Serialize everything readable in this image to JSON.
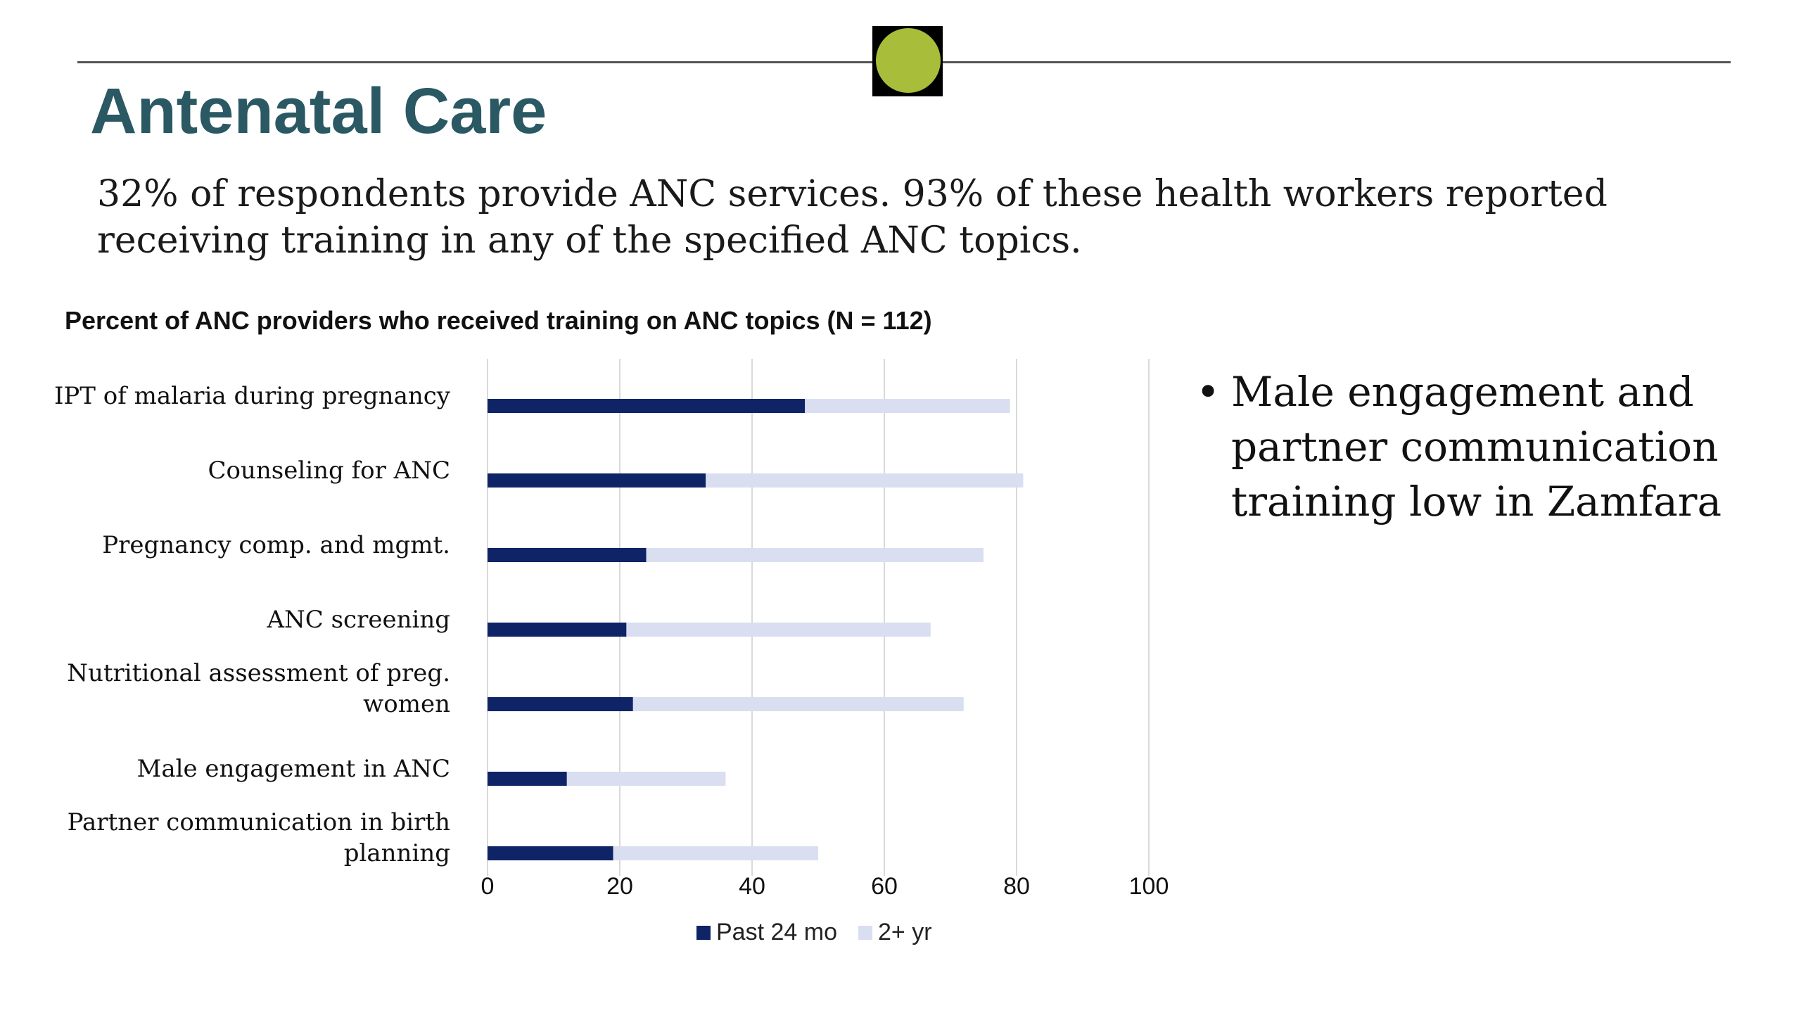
{
  "slide": {
    "title": "Antenatal Care",
    "subtitle": "32% of respondents provide ANC services. 93% of these health workers reported receiving training in any of the specified ANC topics.",
    "bullets": [
      "Male engagement and partner communication training low in Zamfara"
    ]
  },
  "colors": {
    "title": "#2a5863",
    "badge_dot": "#a8bd3a",
    "series_recent": "#0f2466",
    "series_older": "#d9dff0",
    "gridline": "#d9d9d9"
  },
  "chart_data": {
    "type": "bar",
    "orientation": "horizontal",
    "stacked": true,
    "title": "Percent of ANC providers who received training on ANC topics (N = 112)",
    "categories": [
      "IPT of malaria during pregnancy",
      "Counseling for ANC",
      "Pregnancy comp. and mgmt.",
      "ANC screening",
      "Nutritional assessment of preg. women",
      "Male engagement in ANC",
      "Partner communication in birth planning"
    ],
    "series": [
      {
        "name": "Past 24 mo",
        "values": [
          48,
          33,
          24,
          21,
          22,
          12,
          19
        ]
      },
      {
        "name": "2+ yr",
        "values": [
          31,
          48,
          51,
          46,
          50,
          24,
          31
        ]
      }
    ],
    "xlim": [
      0,
      100
    ],
    "xticks": [
      0,
      20,
      40,
      60,
      80,
      100
    ],
    "grid": true,
    "legend": "bottom"
  }
}
